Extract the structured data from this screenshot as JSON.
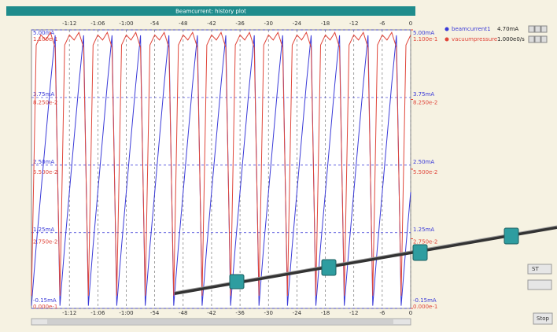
{
  "chart_data": {
    "type": "line",
    "title": "Beamcurrent: history plot",
    "x": [
      -80,
      -79,
      -78,
      -77,
      -76,
      -75,
      -74,
      -73,
      -72,
      -71,
      -70,
      -69,
      -68,
      -67,
      -66,
      -65,
      -64,
      -63,
      -62,
      -61,
      -60,
      -59,
      -58,
      -57,
      -56,
      -55,
      -54,
      -53,
      -52,
      -51,
      -50,
      -49,
      -48,
      -47,
      -46,
      -45,
      -44,
      -43,
      -42,
      -41,
      -40,
      -39,
      -38,
      -37,
      -36,
      -35,
      -34,
      -33,
      -32,
      -31,
      -30,
      -29,
      -28,
      -27,
      -26,
      -25,
      -24,
      -23,
      -22,
      -21,
      -20,
      -19,
      -18,
      -17,
      -16,
      -15,
      -14,
      -13,
      -12,
      -11,
      -10,
      -9,
      -8,
      -7,
      -6,
      -5,
      -4,
      -3,
      -2,
      -1,
      0
    ],
    "series": [
      {
        "name": "beamcurrent1",
        "color": "#3a3ad8",
        "values": [
          -0.1,
          1,
          2,
          3,
          4,
          4.9,
          -0.1,
          1,
          2,
          3,
          4,
          4.9,
          -0.1,
          1,
          2,
          3,
          4,
          4.9,
          -0.1,
          1,
          2,
          3,
          4,
          4.9,
          -0.1,
          1,
          2,
          3,
          4,
          4.9,
          -0.1,
          1,
          2,
          3,
          4,
          4.9,
          -0.1,
          1,
          2,
          3,
          4,
          4.9,
          -0.1,
          1,
          2,
          3,
          4,
          4.9,
          -0.1,
          1,
          2,
          3,
          4,
          4.9,
          -0.1,
          1,
          2,
          3,
          4,
          4.9,
          -0.1,
          1,
          2,
          3,
          4,
          4.9,
          -0.1,
          1,
          2,
          3,
          4,
          4.9,
          -0.1,
          1,
          2,
          3,
          4,
          4.9,
          -0.1,
          1,
          2
        ]
      },
      {
        "name": "vacuumpressure",
        "color": "#e0463a",
        "axis": "y2",
        "values": [
          0.005,
          0.104,
          0.108,
          0.106,
          0.109,
          0.103,
          0.005,
          0.104,
          0.108,
          0.106,
          0.109,
          0.103,
          0.005,
          0.104,
          0.108,
          0.106,
          0.109,
          0.103,
          0.005,
          0.104,
          0.108,
          0.106,
          0.109,
          0.103,
          0.005,
          0.104,
          0.108,
          0.106,
          0.109,
          0.103,
          0.005,
          0.104,
          0.108,
          0.106,
          0.109,
          0.103,
          0.005,
          0.104,
          0.108,
          0.106,
          0.109,
          0.103,
          0.005,
          0.104,
          0.108,
          0.106,
          0.109,
          0.103,
          0.005,
          0.104,
          0.108,
          0.106,
          0.109,
          0.103,
          0.005,
          0.104,
          0.108,
          0.106,
          0.109,
          0.103,
          0.005,
          0.104,
          0.108,
          0.106,
          0.109,
          0.103,
          0.005,
          0.104,
          0.108,
          0.106,
          0.109,
          0.103,
          0.005,
          0.104,
          0.108,
          0.106,
          0.109,
          0.103,
          0.005,
          0.104,
          0.108
        ]
      }
    ],
    "xlim": [
      -80,
      0
    ],
    "xticks": [
      {
        "value": -72,
        "label": "-1:12"
      },
      {
        "value": -66,
        "label": "-1:06"
      },
      {
        "value": -60,
        "label": "-1:00"
      },
      -54,
      -48,
      -42,
      -36,
      -30,
      -24,
      -18,
      -12,
      -6,
      0
    ],
    "ylim": [
      -0.15,
      5.0
    ],
    "yticks": [
      {
        "value": -0.15,
        "label": "-0.15mA"
      },
      {
        "value": 1.25,
        "label": "1.25mA"
      },
      {
        "value": 2.5,
        "label": "2.50mA"
      },
      {
        "value": 3.75,
        "label": "3.75mA"
      },
      {
        "value": 5.0,
        "label": "5.00mA"
      }
    ],
    "y2lim": [
      0,
      0.11
    ],
    "y2ticks": [
      {
        "value": 0,
        "label": "0.000e-1"
      },
      {
        "value": 0.0275,
        "label": "2.750e-2"
      },
      {
        "value": 0.055,
        "label": "5.500e-2"
      },
      {
        "value": 0.0825,
        "label": "8.250e-2"
      },
      {
        "value": 0.11,
        "label": "1.100e-1"
      }
    ],
    "grid": true
  },
  "ui": {
    "legend_values": [
      "4.70mA",
      "1.000e0/s"
    ],
    "buttons": [
      "ST",
      "Stop"
    ]
  }
}
